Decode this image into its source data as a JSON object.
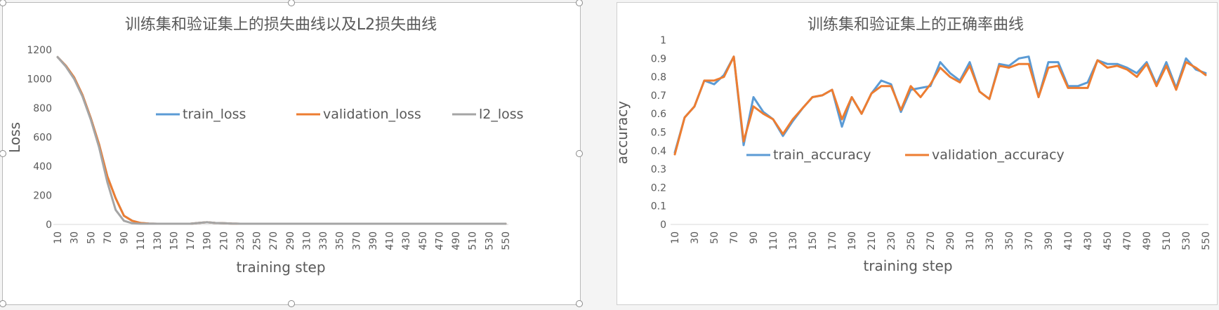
{
  "chart_data": [
    {
      "type": "line",
      "title": "训练集和验证集上的损失曲线以及L2损失曲线",
      "xlabel": "training  step",
      "ylabel": "Loss",
      "ylim": [
        0,
        1200
      ],
      "yticks": [
        "0",
        "200",
        "400",
        "600",
        "800",
        "1000",
        "1200"
      ],
      "x": [
        10,
        20,
        30,
        40,
        50,
        60,
        70,
        80,
        90,
        100,
        110,
        120,
        130,
        140,
        150,
        160,
        170,
        180,
        190,
        200,
        210,
        220,
        230,
        240,
        250,
        260,
        270,
        280,
        290,
        300,
        310,
        320,
        330,
        340,
        350,
        360,
        370,
        380,
        390,
        400,
        410,
        420,
        430,
        440,
        450,
        460,
        470,
        480,
        490,
        500,
        510,
        520,
        530,
        540,
        550
      ],
      "xtick_labels": [
        "10",
        "30",
        "50",
        "70",
        "90",
        "110",
        "130",
        "150",
        "170",
        "190",
        "210",
        "230",
        "250",
        "270",
        "290",
        "310",
        "330",
        "350",
        "370",
        "390",
        "410",
        "430",
        "450",
        "470",
        "490",
        "510",
        "530",
        "550"
      ],
      "grid": false,
      "legend_position": "center-right",
      "series": [
        {
          "name": "train_loss",
          "color": "#5b9bd5",
          "values": [
            1150,
            1090,
            1010,
            890,
            730,
            550,
            330,
            180,
            60,
            25,
            10,
            6,
            5,
            5,
            5,
            5,
            5,
            10,
            15,
            10,
            8,
            6,
            5,
            5,
            5,
            5,
            5,
            5,
            5,
            5,
            5,
            5,
            5,
            5,
            5,
            5,
            5,
            5,
            5,
            5,
            5,
            5,
            5,
            5,
            5,
            5,
            5,
            5,
            5,
            5,
            5,
            5,
            5,
            5,
            5
          ]
        },
        {
          "name": "validation_loss",
          "color": "#ed7d31",
          "values": [
            1150,
            1090,
            1010,
            890,
            730,
            550,
            330,
            180,
            60,
            25,
            10,
            6,
            5,
            5,
            5,
            5,
            5,
            10,
            15,
            10,
            8,
            6,
            5,
            5,
            5,
            5,
            5,
            5,
            5,
            5,
            5,
            5,
            5,
            5,
            5,
            5,
            5,
            5,
            5,
            5,
            5,
            5,
            5,
            5,
            5,
            5,
            5,
            5,
            5,
            5,
            5,
            5,
            5,
            5,
            5
          ]
        },
        {
          "name": "l2_loss",
          "color": "#a5a5a5",
          "values": [
            1150,
            1085,
            1000,
            880,
            720,
            530,
            290,
            100,
            25,
            8,
            5,
            5,
            5,
            5,
            5,
            5,
            5,
            10,
            15,
            10,
            8,
            6,
            5,
            5,
            5,
            5,
            5,
            5,
            5,
            5,
            5,
            5,
            5,
            5,
            5,
            5,
            5,
            5,
            5,
            5,
            5,
            5,
            5,
            5,
            5,
            5,
            5,
            5,
            5,
            5,
            5,
            5,
            5,
            5,
            5
          ]
        }
      ]
    },
    {
      "type": "line",
      "title": "训练集和验证集上的正确率曲线",
      "xlabel": "training step",
      "ylabel": "accuracy",
      "ylim": [
        0,
        1
      ],
      "yticks": [
        "0",
        "0.1",
        "0.2",
        "0.3",
        "0.4",
        "0.5",
        "0.6",
        "0.7",
        "0.8",
        "0.9",
        "1"
      ],
      "x": [
        10,
        20,
        30,
        40,
        50,
        60,
        70,
        80,
        90,
        100,
        110,
        120,
        130,
        140,
        150,
        160,
        170,
        180,
        190,
        200,
        210,
        220,
        230,
        240,
        250,
        260,
        270,
        280,
        290,
        300,
        310,
        320,
        330,
        340,
        350,
        360,
        370,
        380,
        390,
        400,
        410,
        420,
        430,
        440,
        450,
        460,
        470,
        480,
        490,
        500,
        510,
        520,
        530,
        540,
        550
      ],
      "xtick_labels": [
        "10",
        "30",
        "50",
        "70",
        "90",
        "110",
        "130",
        "150",
        "170",
        "190",
        "210",
        "230",
        "250",
        "270",
        "290",
        "310",
        "330",
        "350",
        "370",
        "390",
        "410",
        "430",
        "450",
        "470",
        "490",
        "510",
        "530",
        "550"
      ],
      "grid": false,
      "legend_position": "center-right",
      "series": [
        {
          "name": "train_accuracy",
          "color": "#5b9bd5",
          "values": [
            0.39,
            0.58,
            0.64,
            0.78,
            0.76,
            0.81,
            0.91,
            0.43,
            0.69,
            0.61,
            0.57,
            0.48,
            0.56,
            0.63,
            0.69,
            0.7,
            0.73,
            0.53,
            0.69,
            0.6,
            0.71,
            0.78,
            0.76,
            0.61,
            0.73,
            0.74,
            0.75,
            0.88,
            0.82,
            0.78,
            0.88,
            0.72,
            0.68,
            0.87,
            0.86,
            0.9,
            0.91,
            0.69,
            0.88,
            0.88,
            0.75,
            0.75,
            0.77,
            0.89,
            0.87,
            0.87,
            0.85,
            0.82,
            0.88,
            0.76,
            0.88,
            0.74,
            0.9,
            0.84,
            0.82
          ]
        },
        {
          "name": "validation_accuracy",
          "color": "#ed7d31",
          "values": [
            0.38,
            0.58,
            0.64,
            0.78,
            0.78,
            0.8,
            0.91,
            0.45,
            0.64,
            0.6,
            0.57,
            0.49,
            0.57,
            0.63,
            0.69,
            0.7,
            0.73,
            0.57,
            0.69,
            0.6,
            0.71,
            0.75,
            0.75,
            0.62,
            0.75,
            0.69,
            0.76,
            0.85,
            0.8,
            0.77,
            0.86,
            0.72,
            0.68,
            0.86,
            0.85,
            0.87,
            0.87,
            0.69,
            0.85,
            0.86,
            0.74,
            0.74,
            0.74,
            0.89,
            0.85,
            0.86,
            0.84,
            0.8,
            0.87,
            0.75,
            0.86,
            0.73,
            0.88,
            0.85,
            0.81
          ]
        }
      ]
    }
  ]
}
